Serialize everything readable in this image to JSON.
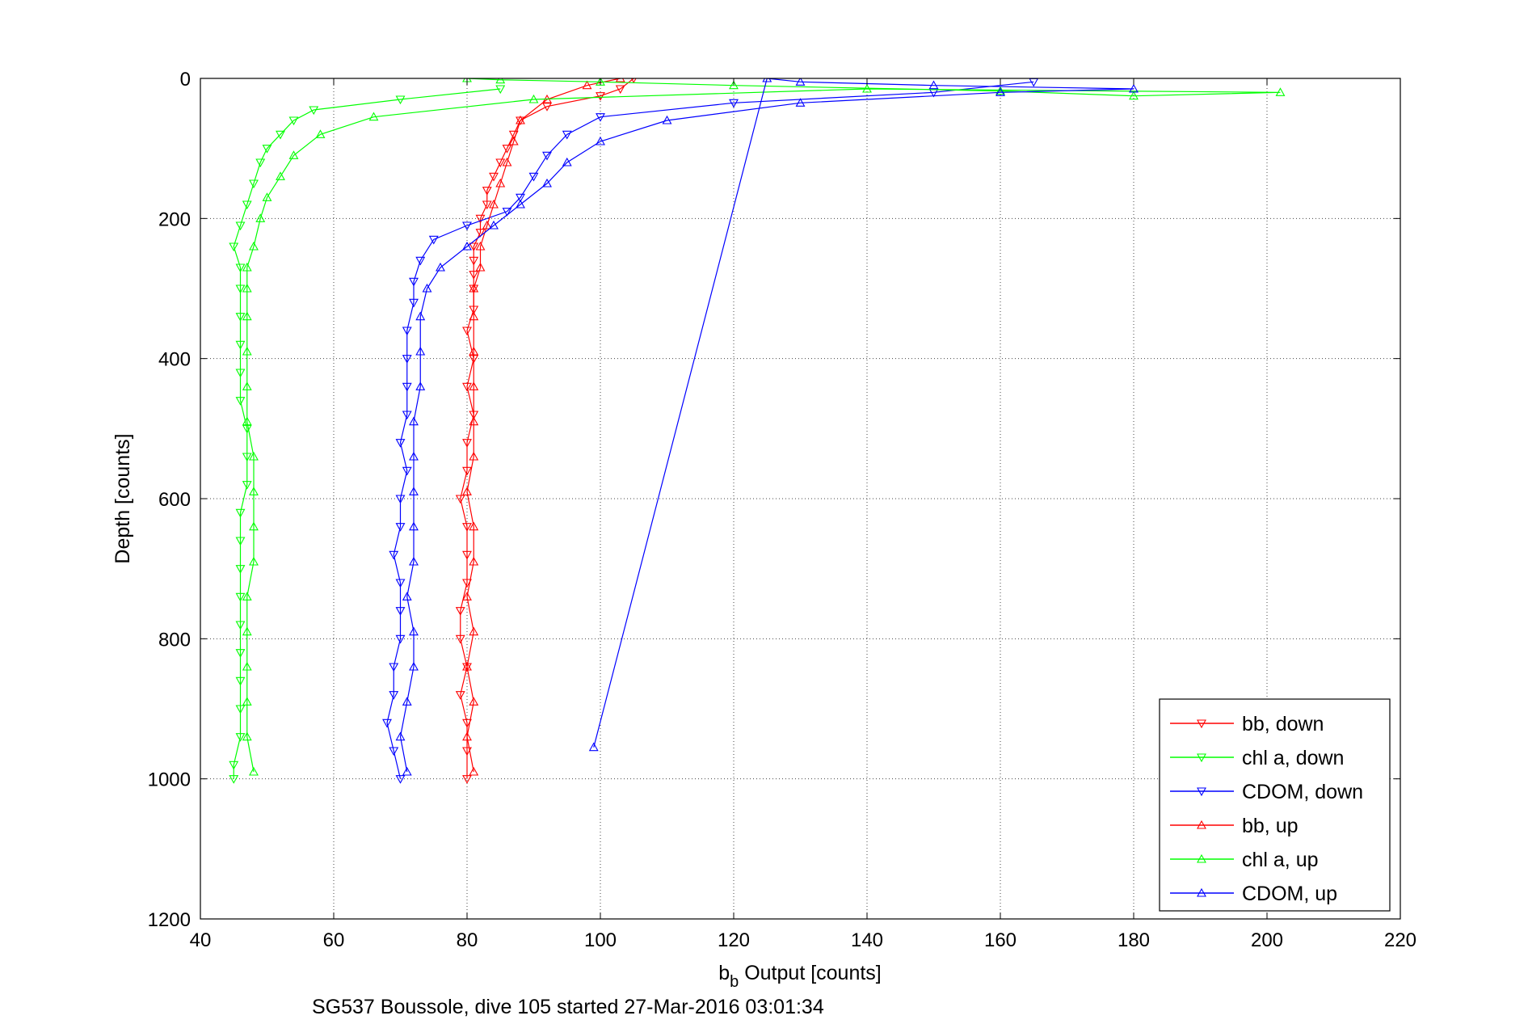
{
  "chart_data": {
    "type": "scatter",
    "title": "",
    "xlabel_main": "b",
    "xlabel_sub": "b",
    "xlabel_rest": " Output [counts]",
    "ylabel": "Depth [counts]",
    "caption": "SG537 Boussole, dive 105 started 27-Mar-2016 03:01:34",
    "xlim": [
      40,
      220
    ],
    "ylim": [
      0,
      1200
    ],
    "y_reversed": true,
    "xticks": [
      40,
      60,
      80,
      100,
      120,
      140,
      160,
      180,
      200,
      220
    ],
    "yticks": [
      0,
      200,
      400,
      600,
      800,
      1000,
      1200
    ],
    "grid": true,
    "legend_position": "bottom-right",
    "series": [
      {
        "name": "bb, down",
        "color": "#ff0000",
        "marker": "triangle-down",
        "points": [
          [
            105,
            0
          ],
          [
            103,
            15
          ],
          [
            100,
            25
          ],
          [
            92,
            40
          ],
          [
            88,
            60
          ],
          [
            87,
            80
          ],
          [
            86,
            100
          ],
          [
            85,
            120
          ],
          [
            84,
            140
          ],
          [
            83,
            160
          ],
          [
            83,
            180
          ],
          [
            82,
            200
          ],
          [
            82,
            220
          ],
          [
            81,
            240
          ],
          [
            81,
            260
          ],
          [
            81,
            280
          ],
          [
            81,
            300
          ],
          [
            81,
            330
          ],
          [
            80,
            360
          ],
          [
            81,
            400
          ],
          [
            80,
            440
          ],
          [
            81,
            480
          ],
          [
            80,
            520
          ],
          [
            80,
            560
          ],
          [
            79,
            600
          ],
          [
            80,
            640
          ],
          [
            80,
            680
          ],
          [
            80,
            720
          ],
          [
            79,
            760
          ],
          [
            79,
            800
          ],
          [
            80,
            840
          ],
          [
            79,
            880
          ],
          [
            80,
            920
          ],
          [
            80,
            960
          ],
          [
            80,
            1000
          ]
        ]
      },
      {
        "name": "chl a, down",
        "color": "#00ff00",
        "marker": "triangle-down",
        "points": [
          [
            85,
            15
          ],
          [
            70,
            30
          ],
          [
            57,
            45
          ],
          [
            54,
            60
          ],
          [
            52,
            80
          ],
          [
            50,
            100
          ],
          [
            49,
            120
          ],
          [
            48,
            150
          ],
          [
            47,
            180
          ],
          [
            46,
            210
          ],
          [
            45,
            240
          ],
          [
            46,
            270
          ],
          [
            46,
            300
          ],
          [
            46,
            340
          ],
          [
            46,
            380
          ],
          [
            46,
            420
          ],
          [
            46,
            460
          ],
          [
            47,
            500
          ],
          [
            47,
            540
          ],
          [
            47,
            580
          ],
          [
            46,
            620
          ],
          [
            46,
            660
          ],
          [
            46,
            700
          ],
          [
            46,
            740
          ],
          [
            46,
            780
          ],
          [
            46,
            820
          ],
          [
            46,
            860
          ],
          [
            46,
            900
          ],
          [
            46,
            940
          ],
          [
            45,
            980
          ],
          [
            45,
            1000
          ]
        ]
      },
      {
        "name": "CDOM, down",
        "color": "#0000ff",
        "marker": "triangle-down",
        "points": [
          [
            165,
            5
          ],
          [
            150,
            20
          ],
          [
            120,
            35
          ],
          [
            100,
            55
          ],
          [
            95,
            80
          ],
          [
            92,
            110
          ],
          [
            90,
            140
          ],
          [
            88,
            170
          ],
          [
            86,
            190
          ],
          [
            80,
            210
          ],
          [
            75,
            230
          ],
          [
            73,
            260
          ],
          [
            72,
            290
          ],
          [
            72,
            320
          ],
          [
            71,
            360
          ],
          [
            71,
            400
          ],
          [
            71,
            440
          ],
          [
            71,
            480
          ],
          [
            70,
            520
          ],
          [
            71,
            560
          ],
          [
            70,
            600
          ],
          [
            70,
            640
          ],
          [
            69,
            680
          ],
          [
            70,
            720
          ],
          [
            70,
            760
          ],
          [
            70,
            800
          ],
          [
            69,
            840
          ],
          [
            69,
            880
          ],
          [
            68,
            920
          ],
          [
            69,
            960
          ],
          [
            70,
            1000
          ]
        ]
      },
      {
        "name": "bb, up",
        "color": "#ff0000",
        "marker": "triangle-up",
        "points": [
          [
            81,
            990
          ],
          [
            80,
            940
          ],
          [
            81,
            890
          ],
          [
            80,
            840
          ],
          [
            81,
            790
          ],
          [
            80,
            740
          ],
          [
            81,
            690
          ],
          [
            81,
            640
          ],
          [
            80,
            590
          ],
          [
            81,
            540
          ],
          [
            81,
            490
          ],
          [
            81,
            440
          ],
          [
            81,
            390
          ],
          [
            81,
            340
          ],
          [
            81,
            300
          ],
          [
            82,
            270
          ],
          [
            82,
            240
          ],
          [
            83,
            210
          ],
          [
            84,
            180
          ],
          [
            85,
            150
          ],
          [
            86,
            120
          ],
          [
            87,
            90
          ],
          [
            88,
            60
          ],
          [
            92,
            30
          ],
          [
            98,
            10
          ],
          [
            103,
            0
          ]
        ]
      },
      {
        "name": "chl a, up",
        "color": "#00ff00",
        "marker": "triangle-up",
        "points": [
          [
            48,
            990
          ],
          [
            47,
            940
          ],
          [
            47,
            890
          ],
          [
            47,
            840
          ],
          [
            47,
            790
          ],
          [
            47,
            740
          ],
          [
            48,
            690
          ],
          [
            48,
            640
          ],
          [
            48,
            590
          ],
          [
            48,
            540
          ],
          [
            47,
            490
          ],
          [
            47,
            440
          ],
          [
            47,
            390
          ],
          [
            47,
            340
          ],
          [
            47,
            300
          ],
          [
            47,
            270
          ],
          [
            48,
            240
          ],
          [
            49,
            200
          ],
          [
            50,
            170
          ],
          [
            52,
            140
          ],
          [
            54,
            110
          ],
          [
            58,
            80
          ],
          [
            66,
            55
          ],
          [
            90,
            30
          ],
          [
            140,
            15
          ],
          [
            202,
            20
          ],
          [
            180,
            25
          ],
          [
            160,
            18
          ],
          [
            120,
            10
          ],
          [
            100,
            5
          ],
          [
            85,
            2
          ],
          [
            80,
            0
          ]
        ]
      },
      {
        "name": "CDOM, up",
        "color": "#0000ff",
        "marker": "triangle-up",
        "points": [
          [
            71,
            990
          ],
          [
            70,
            940
          ],
          [
            71,
            890
          ],
          [
            72,
            840
          ],
          [
            72,
            790
          ],
          [
            71,
            740
          ],
          [
            72,
            690
          ],
          [
            72,
            640
          ],
          [
            72,
            590
          ],
          [
            72,
            540
          ],
          [
            72,
            490
          ],
          [
            73,
            440
          ],
          [
            73,
            390
          ],
          [
            73,
            340
          ],
          [
            74,
            300
          ],
          [
            76,
            270
          ],
          [
            80,
            240
          ],
          [
            84,
            210
          ],
          [
            88,
            180
          ],
          [
            92,
            150
          ],
          [
            95,
            120
          ],
          [
            100,
            90
          ],
          [
            110,
            60
          ],
          [
            130,
            35
          ],
          [
            160,
            20
          ],
          [
            180,
            15
          ],
          [
            150,
            10
          ],
          [
            130,
            5
          ],
          [
            125,
            0
          ],
          [
            99,
            955
          ]
        ]
      }
    ]
  }
}
